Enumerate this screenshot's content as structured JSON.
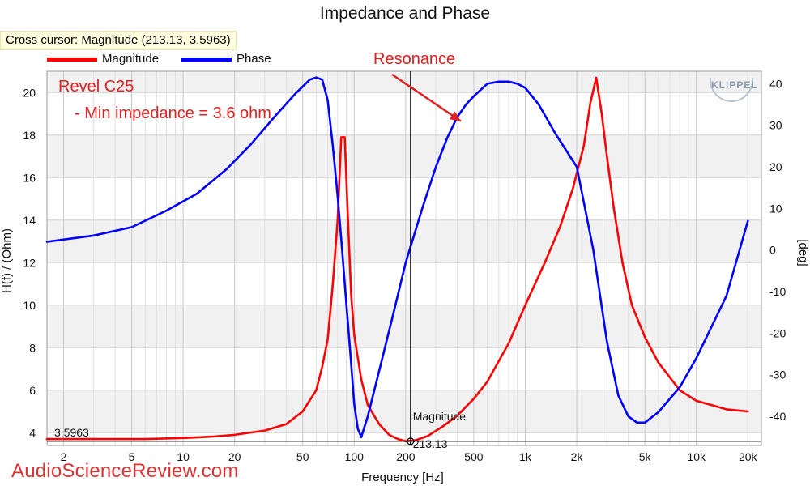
{
  "chart_data": {
    "type": "line",
    "title": "Impedance and Phase",
    "xlabel": "Frequency [Hz]",
    "ylabel": "H(f) / (Ohm)",
    "y2label": "[deg]",
    "xscale": "log",
    "xlim": [
      1.6,
      24000
    ],
    "ylim": [
      3.4,
      21
    ],
    "y2lim": [
      -47,
      43
    ],
    "grid": true,
    "legend_position": "top-left",
    "x_ticks": [
      {
        "value": 2,
        "label": "2"
      },
      {
        "value": 5,
        "label": "5"
      },
      {
        "value": 10,
        "label": "10"
      },
      {
        "value": 20,
        "label": "20"
      },
      {
        "value": 50,
        "label": "50"
      },
      {
        "value": 100,
        "label": "100"
      },
      {
        "value": 200,
        "label": "200"
      },
      {
        "value": 500,
        "label": "500"
      },
      {
        "value": 1000,
        "label": "1k"
      },
      {
        "value": 2000,
        "label": "2k"
      },
      {
        "value": 5000,
        "label": "5k"
      },
      {
        "value": 10000,
        "label": "10k"
      },
      {
        "value": 20000,
        "label": "20k"
      }
    ],
    "y_ticks": [
      {
        "value": 4,
        "label": "4"
      },
      {
        "value": 6,
        "label": "6"
      },
      {
        "value": 8,
        "label": "8"
      },
      {
        "value": 10,
        "label": "10"
      },
      {
        "value": 12,
        "label": "12"
      },
      {
        "value": 14,
        "label": "14"
      },
      {
        "value": 16,
        "label": "16"
      },
      {
        "value": 18,
        "label": "18"
      },
      {
        "value": 20,
        "label": "20"
      }
    ],
    "y2_ticks": [
      {
        "value": 40,
        "label": "40"
      },
      {
        "value": 30,
        "label": "30"
      },
      {
        "value": 20,
        "label": "20"
      },
      {
        "value": 10,
        "label": "10"
      },
      {
        "value": 0,
        "label": "0"
      },
      {
        "value": -10,
        "label": "-10"
      },
      {
        "value": -20,
        "label": "-20"
      },
      {
        "value": -30,
        "label": "-30"
      },
      {
        "value": -40,
        "label": "-40"
      }
    ],
    "series": [
      {
        "name": "Magnitude",
        "color": "#ff0000",
        "axis": "left",
        "x": [
          1.6,
          3,
          6,
          10,
          15,
          20,
          30,
          40,
          50,
          60,
          65,
          70,
          75,
          80,
          84,
          88,
          92,
          96,
          100,
          110,
          120,
          140,
          160,
          180,
          200,
          230,
          270,
          330,
          400,
          500,
          600,
          800,
          1000,
          1300,
          1600,
          1900,
          2200,
          2400,
          2600,
          2800,
          3000,
          3300,
          3700,
          4200,
          5000,
          6000,
          8000,
          10000,
          15000,
          20000
        ],
        "y": [
          3.7,
          3.7,
          3.7,
          3.75,
          3.82,
          3.9,
          4.1,
          4.4,
          5.0,
          6.0,
          7.1,
          8.4,
          11.0,
          14.0,
          17.9,
          17.9,
          14.0,
          10.5,
          8.6,
          6.5,
          5.3,
          4.4,
          3.9,
          3.7,
          3.6,
          3.65,
          3.85,
          4.3,
          4.8,
          5.6,
          6.4,
          8.2,
          10.0,
          12.0,
          13.7,
          15.5,
          17.5,
          19.5,
          20.7,
          19.0,
          17.0,
          14.5,
          12.0,
          10.0,
          8.5,
          7.3,
          6.0,
          5.5,
          5.1,
          5.0
        ]
      },
      {
        "name": "Phase",
        "color": "#0000ff",
        "axis": "right",
        "x": [
          1.6,
          3,
          5,
          8,
          12,
          18,
          25,
          35,
          45,
          55,
          60,
          65,
          70,
          75,
          80,
          85,
          90,
          95,
          100,
          105,
          110,
          120,
          140,
          170,
          200,
          250,
          300,
          350,
          400,
          450,
          500,
          600,
          700,
          800,
          900,
          1000,
          1200,
          1500,
          2000,
          2500,
          3000,
          3500,
          4000,
          4500,
          5000,
          6000,
          8000,
          10000,
          15000,
          20000
        ],
        "y": [
          2,
          3.5,
          5.5,
          9.5,
          13.5,
          19.5,
          25.5,
          32.5,
          37.5,
          41,
          41.5,
          41,
          36,
          25,
          13,
          0,
          -13,
          -25,
          -37,
          -43,
          -45,
          -40,
          -29,
          -15,
          -3,
          10,
          20,
          27,
          32,
          35,
          37,
          40,
          40.5,
          40.5,
          40,
          39,
          35,
          28,
          20,
          0,
          -22,
          -35,
          -40,
          -41.5,
          -41.5,
          -39,
          -33,
          -26,
          -11,
          7
        ]
      }
    ],
    "cursor": {
      "x": 213.13,
      "y": 3.5963,
      "x_label": "213.13",
      "y_label": "3.5963",
      "series_label": "Magnitude"
    },
    "annotations": [
      {
        "text": "Revel C25",
        "color": "#e02020"
      },
      {
        "text": "- Min impedance = 3.6 ohm",
        "color": "#e02020"
      },
      {
        "text": "Resonance",
        "color": "#e02020",
        "x": 420,
        "y2": 31
      }
    ]
  },
  "cursor_readout": "Cross cursor: Magnitude (213.13, 3.5963)",
  "brand_logo": "KLIPPEL",
  "watermark": "AudioScienceReview.com"
}
